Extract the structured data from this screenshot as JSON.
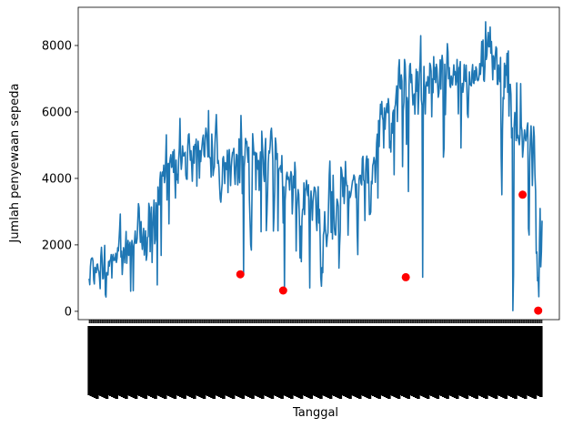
{
  "chart_data": {
    "type": "line",
    "xlabel": "Tanggal",
    "ylabel": "Jumlah penyewaan sepeda",
    "ylim": [
      -250,
      9150
    ],
    "yticks": [
      0,
      2000,
      4000,
      6000,
      8000
    ],
    "grid": false,
    "line_color": "#1f77b4",
    "marker_color": "#ff0000",
    "x_tick_labels_note": "x tick labels are crowded, rotated 90° and illegible",
    "series": [
      {
        "values": [
          985,
          801,
          1349,
          1562,
          1600,
          1606,
          1510,
          959,
          822,
          1321,
          1263,
          1162,
          1406,
          1421,
          1248,
          1204,
          1000,
          683,
          1650,
          1927,
          1543,
          981,
          986,
          1416,
          1985,
          506,
          431,
          1167,
          1098,
          1096,
          1501,
          1360,
          1526,
          1550,
          1708,
          1005,
          1623,
          1712,
          1530,
          1605,
          1538,
          1746,
          1472,
          1589,
          1913,
          1815,
          2115,
          2475,
          2927,
          1635,
          1812,
          1107,
          1450,
          1917,
          1807,
          1461,
          1969,
          2402,
          1446,
          1851,
          2134,
          1685,
          1944,
          2077,
          605,
          1872,
          2133,
          1891,
          623,
          1977,
          2132,
          2417,
          2046,
          2056,
          2192,
          2744,
          3239,
          3117,
          2471,
          2077,
          2703,
          2121,
          1865,
          2210,
          2496,
          1693,
          2028,
          2425,
          1536,
          1685,
          2227,
          2252,
          3249,
          3115,
          1795,
          2808,
          3141,
          1471,
          2455,
          2895,
          3348,
          2034,
          2162,
          3267,
          3126,
          795,
          3744,
          3429,
          3204,
          3944,
          4189,
          1683,
          4036,
          4191,
          4073,
          4400,
          3872,
          4058,
          4595,
          5312,
          3351,
          4401,
          4451,
          2633,
          4433,
          4608,
          4714,
          4333,
          4362,
          4803,
          4182,
          4864,
          4105,
          3409,
          4553,
          3958,
          4123,
          3855,
          4575,
          4917,
          5805,
          4660,
          4274,
          4492,
          4978,
          4677,
          4679,
          4758,
          4788,
          4098,
          3982,
          3974,
          4968,
          5312,
          5342,
          4906,
          4548,
          4833,
          4401,
          3915,
          4586,
          4966,
          4460,
          5020,
          4891,
          5180,
          3767,
          4844,
          5119,
          4744,
          4010,
          4835,
          4507,
          4790,
          4991,
          5202,
          5305,
          4708,
          4648,
          5225,
          5515,
          5362,
          5119,
          4649,
          6043,
          4665,
          4629,
          4592,
          4040,
          5336,
          4881,
          4086,
          4258,
          4342,
          5084,
          5538,
          5923,
          5302,
          4458,
          4541,
          4332,
          3784,
          3387,
          3285,
          3606,
          3840,
          4590,
          4656,
          4390,
          3846,
          4475,
          4302,
          4266,
          4845,
          3574,
          4576,
          4866,
          4294,
          3785,
          4326,
          4602,
          4780,
          4792,
          4905,
          4150,
          3820,
          4338,
          4725,
          4694,
          3805,
          4153,
          5191,
          3873,
          4758,
          5895,
          5130,
          3542,
          4661,
          1115,
          4334,
          4634,
          5204,
          5058,
          5115,
          4727,
          4484,
          4940,
          3351,
          2710,
          1996,
          1842,
          3544,
          5345,
          5046,
          4713,
          4763,
          4785,
          3659,
          4760,
          4511,
          4274,
          4539,
          3641,
          4352,
          4795,
          2395,
          5423,
          5010,
          4630,
          4120,
          3907,
          4839,
          5202,
          2429,
          2918,
          3570,
          4456,
          4826,
          4765,
          4985,
          5409,
          5511,
          5117,
          4563,
          2416,
          2913,
          3644,
          5217,
          5041,
          4570,
          4748,
          2424,
          4195,
          4304,
          4308,
          4381,
          4187,
          4687,
          3894,
          2659,
          3747,
          627,
          3331,
          3669,
          4068,
          4186,
          3974,
          4046,
          3926,
          3649,
          4035,
          4205,
          4109,
          2933,
          3368,
          4067,
          3717,
          4486,
          4195,
          1817,
          3053,
          3392,
          3663,
          3520,
          2765,
          1607,
          2566,
          1495,
          2792,
          3068,
          3071,
          3867,
          2914,
          3613,
          3727,
          3940,
          3614,
          3485,
          3811,
          2594,
          705,
          3322,
          3620,
          3190,
          2743,
          3310,
          3523,
          3740,
          3709,
          3577,
          2739,
          2431,
          3403,
          3750,
          2660,
          3068,
          2209,
          1011,
          754,
          1317,
          1162,
          2302,
          2423,
          2999,
          2485,
          2294,
          1951,
          2236,
          2368,
          3272,
          4098,
          4521,
          3425,
          2376,
          3598,
          2177,
          4097,
          3214,
          2493,
          2311,
          2298,
          2935,
          3376,
          3292,
          3163,
          1301,
          1977,
          2432,
          4339,
          4270,
          4075,
          3456,
          4023,
          3243,
          3624,
          4509,
          3959,
          3777,
          3784,
          2294,
          3129,
          3614,
          3422,
          3484,
          3622,
          3786,
          3932,
          3963,
          4102,
          4053,
          3831,
          3422,
          3829,
          2417,
          1707,
          3292,
          3981,
          4086,
          4094,
          3862,
          3806,
          4602,
          4665,
          3954,
          3916,
          2733,
          4150,
          4556,
          4673,
          3864,
          4586,
          3838,
          2914,
          2918,
          2990,
          3911,
          3836,
          4389,
          4468,
          4631,
          4512,
          3882,
          4375,
          5061,
          5333,
          3409,
          5743,
          4960,
          5742,
          6233,
          5932,
          6316,
          5851,
          5754,
          4916,
          6123,
          5478,
          5896,
          6097,
          6248,
          5976,
          6402,
          6169,
          4918,
          5118,
          4795,
          5659,
          5358,
          5969,
          6053,
          4112,
          6121,
          6225,
          6520,
          6784,
          5711,
          6591,
          7312,
          7572,
          6740,
          6693,
          7118,
          6927,
          4354,
          6031,
          6296,
          7580,
          7445,
          6898,
          5026,
          6433,
          6235,
          3606,
          6779,
          7391,
          7458,
          6884,
          7129,
          6639,
          6211,
          6458,
          6541,
          5936,
          6599,
          7284,
          6625,
          7208,
          5936,
          6472,
          7120,
          7498,
          8294,
          6359,
          6196,
          1027,
          6229,
          7370,
          6538,
          5941,
          6767,
          6898,
          6784,
          7065,
          6883,
          6565,
          7467,
          7407,
          7227,
          5856,
          6998,
          6582,
          7665,
          6978,
          7337,
          6883,
          7436,
          7318,
          6862,
          6442,
          6569,
          6993,
          7570,
          6689,
          7444,
          7702,
          7460,
          4639,
          4916,
          7437,
          5920,
          6883,
          7306,
          8055,
          7804,
          7001,
          7335,
          6796,
          6738,
          7082,
          6956,
          6811,
          7102,
          7418,
          7116,
          7218,
          6813,
          6936,
          7580,
          6997,
          5944,
          7335,
          7346,
          7516,
          4916,
          6566,
          6861,
          6592,
          6812,
          7424,
          6997,
          6920,
          7409,
          6834,
          5947,
          5835,
          6627,
          7207,
          6826,
          6824,
          6784,
          7213,
          7425,
          6883,
          6856,
          7240,
          6956,
          7356,
          7286,
          6974,
          6940,
          6969,
          7101,
          7458,
          7131,
          7441,
          8120,
          7380,
          8167,
          6966,
          6922,
          7375,
          8714,
          7580,
          7705,
          8156,
          8395,
          7962,
          7969,
          8555,
          7768,
          8120,
          7571,
          6970,
          7691,
          7570,
          7282,
          7733,
          7959,
          7907,
          6835,
          6828,
          7415,
          7105,
          6911,
          7642,
          4639,
          3510,
          5478,
          6436,
          6390,
          7466,
          6740,
          7399,
          7107,
          7765,
          6591,
          7836,
          5875,
          6825,
          6831,
          6539,
          5219,
          5520,
          22,
          1096,
          5566,
          5986,
          5847,
          5138,
          6874,
          5219,
          5302,
          5116,
          5013,
          5315,
          6852,
          5566,
          5437,
          4639,
          4914,
          5217,
          5459,
          5229,
          5130,
          5310,
          5555,
          5669,
          2493,
          2297,
          4511,
          5191,
          5582,
          5047,
          3786,
          4585,
          5557,
          5267,
          4128,
          3623,
          1749,
          1787,
          920,
          1013,
          441,
          2114,
          3095,
          1341,
          1796,
          2729
        ],
        "markers": [
          {
            "index": 233,
            "value": 1115
          },
          {
            "index": 299,
            "value": 627
          },
          {
            "index": 488,
            "value": 1027
          },
          {
            "index": 668,
            "value": 3510
          },
          {
            "index": 692,
            "value": 22
          }
        ]
      }
    ]
  }
}
